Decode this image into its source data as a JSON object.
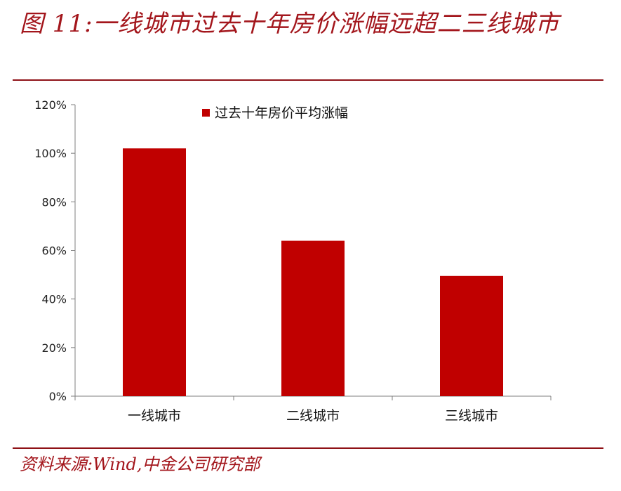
{
  "figure": {
    "title": "图 11:一线城市过去十年房价涨幅远超二三线城市",
    "source": "资料来源:Wind,中金公司研究部"
  },
  "colors": {
    "accent": "#a3161c",
    "bar": "#c00000",
    "axis": "#7f7f7f"
  },
  "chart_data": {
    "type": "bar",
    "categories": [
      "一线城市",
      "二线城市",
      "三线城市"
    ],
    "series": [
      {
        "name": "过去十年房价平均涨幅",
        "values": [
          102,
          64,
          49.5
        ]
      }
    ],
    "ylim": [
      0,
      120
    ],
    "yticks": [
      0,
      20,
      40,
      60,
      80,
      100,
      120
    ],
    "ytick_labels": [
      "0%",
      "20%",
      "40%",
      "60%",
      "80%",
      "100%",
      "120%"
    ],
    "grid": false,
    "legend_position": "top-left"
  }
}
